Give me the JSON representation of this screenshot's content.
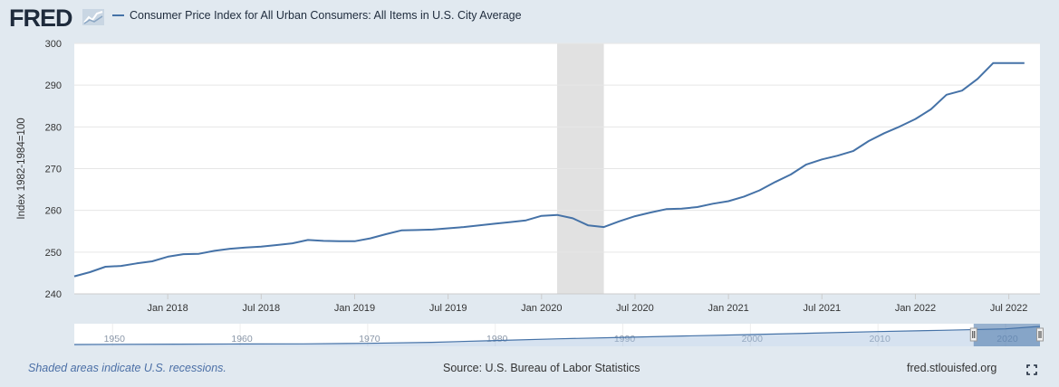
{
  "brand": "FRED",
  "colors": {
    "line": "#4572a7",
    "recession": "#e1e1e1",
    "grid": "#e6e6e6",
    "navigator_fill": "#4572a7"
  },
  "footer": {
    "note": "Shaded areas indicate U.S. recessions.",
    "source": "Source: U.S. Bureau of Labor Statistics",
    "site": "fred.stlouisfed.org"
  },
  "icons": {
    "fullscreen": "expand-icon",
    "logo": "line-chart-icon"
  },
  "chart_data": {
    "type": "line",
    "title": "",
    "ylabel": "Index 1982-1984=100",
    "ylim": [
      240,
      300
    ],
    "yticks": [
      240,
      250,
      260,
      270,
      280,
      290,
      300
    ],
    "xlim": [
      "2017-07",
      "2022-09"
    ],
    "xticks": [
      {
        "label": "Jan 2018",
        "date": "2018-01"
      },
      {
        "label": "Jul 2018",
        "date": "2018-07"
      },
      {
        "label": "Jan 2019",
        "date": "2019-01"
      },
      {
        "label": "Jul 2019",
        "date": "2019-07"
      },
      {
        "label": "Jan 2020",
        "date": "2020-01"
      },
      {
        "label": "Jul 2020",
        "date": "2020-07"
      },
      {
        "label": "Jan 2021",
        "date": "2021-01"
      },
      {
        "label": "Jul 2021",
        "date": "2021-07"
      },
      {
        "label": "Jan 2022",
        "date": "2022-01"
      },
      {
        "label": "Jul 2022",
        "date": "2022-07"
      }
    ],
    "recessions": [
      {
        "start": "2020-02",
        "end": "2020-04"
      }
    ],
    "grid": true,
    "legend_position": "top-left",
    "series": [
      {
        "name": "Consumer Price Index for All Urban Consumers: All Items in U.S. City Average",
        "x": [
          "2017-07",
          "2017-08",
          "2017-09",
          "2017-10",
          "2017-11",
          "2017-12",
          "2018-01",
          "2018-02",
          "2018-03",
          "2018-04",
          "2018-05",
          "2018-06",
          "2018-07",
          "2018-08",
          "2018-09",
          "2018-10",
          "2018-11",
          "2018-12",
          "2019-01",
          "2019-02",
          "2019-03",
          "2019-04",
          "2019-05",
          "2019-06",
          "2019-07",
          "2019-08",
          "2019-09",
          "2019-10",
          "2019-11",
          "2019-12",
          "2020-01",
          "2020-02",
          "2020-03",
          "2020-04",
          "2020-05",
          "2020-06",
          "2020-07",
          "2020-08",
          "2020-09",
          "2020-10",
          "2020-11",
          "2020-12",
          "2021-01",
          "2021-02",
          "2021-03",
          "2021-04",
          "2021-05",
          "2021-06",
          "2021-07",
          "2021-08",
          "2021-09",
          "2021-10",
          "2021-11",
          "2021-12",
          "2022-01",
          "2022-02",
          "2022-03",
          "2022-04",
          "2022-05",
          "2022-06",
          "2022-07",
          "2022-08"
        ],
        "y": [
          244.2,
          245.2,
          246.5,
          246.7,
          247.3,
          247.8,
          248.9,
          249.5,
          249.6,
          250.3,
          250.8,
          251.1,
          251.3,
          251.7,
          252.1,
          252.9,
          252.7,
          252.6,
          252.6,
          253.3,
          254.3,
          255.2,
          255.3,
          255.4,
          255.7,
          256.0,
          256.4,
          256.8,
          257.2,
          257.6,
          258.7,
          258.9,
          258.1,
          256.4,
          256.0,
          257.4,
          258.6,
          259.5,
          260.3,
          260.4,
          260.8,
          261.6,
          262.2,
          263.3,
          264.8,
          266.8,
          268.6,
          271.0,
          272.2,
          273.1,
          274.2,
          276.6,
          278.5,
          280.1,
          281.9,
          284.2,
          287.7,
          288.7,
          291.5,
          295.3,
          295.3,
          295.3
        ]
      }
    ],
    "navigator": {
      "xticks": [
        "1950",
        "1960",
        "1970",
        "1980",
        "1990",
        "2000",
        "2010",
        "2020"
      ],
      "x_years": [
        1947,
        1950,
        1955,
        1960,
        1965,
        1970,
        1975,
        1980,
        1985,
        1990,
        1995,
        2000,
        2005,
        2010,
        2015,
        2020,
        2022.7
      ],
      "y": [
        21.5,
        23.6,
        26.8,
        29.6,
        31.5,
        38.8,
        53.8,
        82.4,
        107.6,
        130.7,
        152.4,
        172.2,
        195.3,
        218.1,
        237.0,
        258.8,
        296.3
      ],
      "selection": [
        "2017-07",
        "2022-09"
      ]
    }
  }
}
